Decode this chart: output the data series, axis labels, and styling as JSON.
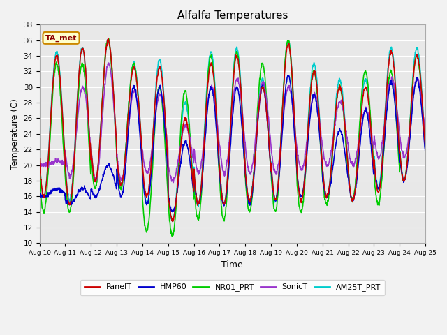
{
  "title": "Alfalfa Temperatures",
  "xlabel": "Time",
  "ylabel": "Temperature (C)",
  "ylim": [
    10,
    38
  ],
  "annotation": "TA_met",
  "bg_color": "#e8e8e8",
  "series": {
    "PanelT": {
      "color": "#cc0000",
      "lw": 1.2
    },
    "HMP60": {
      "color": "#0000cc",
      "lw": 1.2
    },
    "NR01_PRT": {
      "color": "#00cc00",
      "lw": 1.2
    },
    "SonicT": {
      "color": "#9933cc",
      "lw": 1.2
    },
    "AM25T_PRT": {
      "color": "#00cccc",
      "lw": 1.2
    }
  },
  "tick_dates": [
    "Aug 10",
    "Aug 11",
    "Aug 12",
    "Aug 13",
    "Aug 14",
    "Aug 15",
    "Aug 16",
    "Aug 17",
    "Aug 18",
    "Aug 19",
    "Aug 20",
    "Aug 21",
    "Aug 22",
    "Aug 23",
    "Aug 24",
    "Aug 25"
  ],
  "grid_color": "#ffffff",
  "panel_hi": [
    34.0,
    35.0,
    36.0,
    32.5,
    32.5,
    26.0,
    33.0,
    34.0,
    30.0,
    35.5,
    32.0,
    30.0,
    30.0,
    34.5,
    34.0
  ],
  "panel_lo": [
    16.0,
    15.0,
    18.0,
    17.5,
    16.0,
    13.0,
    15.0,
    15.0,
    15.5,
    15.5,
    15.5,
    16.0,
    15.5,
    16.5,
    18.0
  ],
  "hmp_hi": [
    17.0,
    17.0,
    20.0,
    30.0,
    30.0,
    23.0,
    30.0,
    30.0,
    30.0,
    31.5,
    29.0,
    24.5,
    27.0,
    30.5,
    31.0
  ],
  "hmp_lo": [
    16.0,
    15.0,
    16.0,
    16.0,
    15.0,
    14.0,
    15.0,
    15.0,
    15.0,
    15.5,
    16.0,
    16.0,
    15.5,
    17.0,
    18.0
  ],
  "nr01_hi": [
    33.0,
    33.0,
    36.0,
    33.0,
    30.0,
    29.5,
    34.0,
    34.5,
    33.0,
    36.0,
    32.0,
    30.0,
    32.0,
    32.0,
    34.0
  ],
  "nr01_lo": [
    14.0,
    14.0,
    17.0,
    17.0,
    11.5,
    11.0,
    13.0,
    13.0,
    14.0,
    14.0,
    14.0,
    15.0,
    15.5,
    15.0,
    18.0
  ],
  "sonic_hi": [
    20.5,
    30.0,
    33.0,
    29.5,
    29.0,
    25.0,
    30.0,
    31.0,
    30.5,
    30.0,
    29.0,
    28.0,
    27.0,
    31.0,
    31.0
  ],
  "sonic_lo": [
    20.0,
    18.5,
    18.0,
    18.0,
    19.0,
    18.0,
    19.0,
    19.0,
    19.0,
    19.0,
    19.5,
    20.0,
    20.0,
    21.0,
    21.0
  ],
  "am25_hi": [
    34.5,
    35.0,
    36.0,
    33.0,
    33.5,
    28.0,
    34.5,
    35.0,
    31.0,
    36.0,
    33.0,
    31.0,
    31.0,
    35.0,
    35.0
  ],
  "am25_lo": [
    16.0,
    15.5,
    18.0,
    17.5,
    15.0,
    13.0,
    15.0,
    15.0,
    15.5,
    15.5,
    15.5,
    16.0,
    15.5,
    17.0,
    18.0
  ]
}
